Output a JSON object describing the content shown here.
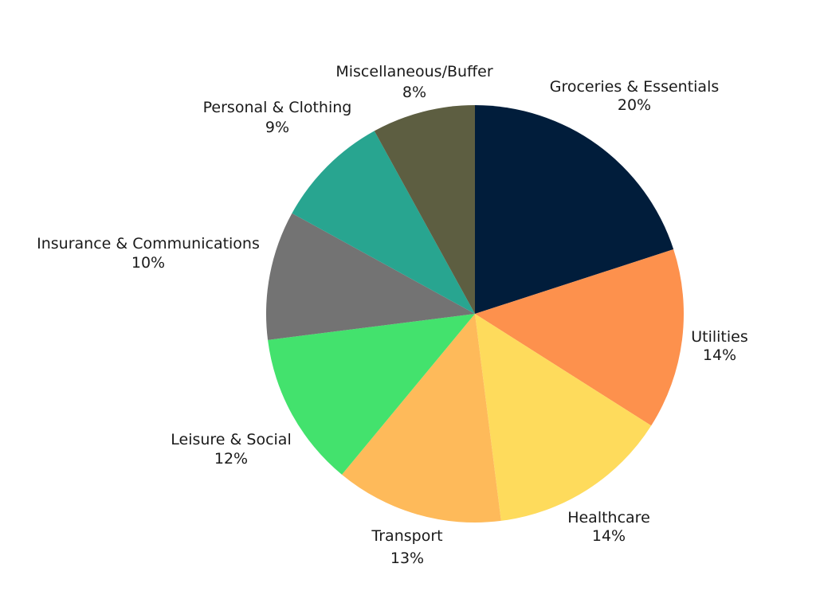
{
  "chart_data": {
    "type": "pie",
    "title": "",
    "slices": [
      {
        "label": "Groceries & Essentials",
        "value": 20,
        "value_label": "20%",
        "color": "#011D3B"
      },
      {
        "label": "Utilities",
        "value": 14,
        "value_label": "14%",
        "color": "#FD914D"
      },
      {
        "label": "Healthcare",
        "value": 14,
        "value_label": "14%",
        "color": "#FEDB5C"
      },
      {
        "label": "Transport",
        "value": 13,
        "value_label": "13%",
        "color": "#FEBA5A"
      },
      {
        "label": "Leisure & Social",
        "value": 12,
        "value_label": "12%",
        "color": "#43E26D"
      },
      {
        "label": "Insurance & Communications",
        "value": 10,
        "value_label": "10%",
        "color": "#737373"
      },
      {
        "label": "Personal & Clothing",
        "value": 9,
        "value_label": "9%",
        "color": "#28A590"
      },
      {
        "label": "Miscellaneous/Buffer",
        "value": 8,
        "value_label": "8%",
        "color": "#5D5E41"
      }
    ],
    "start_position": "12 o'clock",
    "direction": "clockwise",
    "legend": "none",
    "labels_position": "outside"
  }
}
